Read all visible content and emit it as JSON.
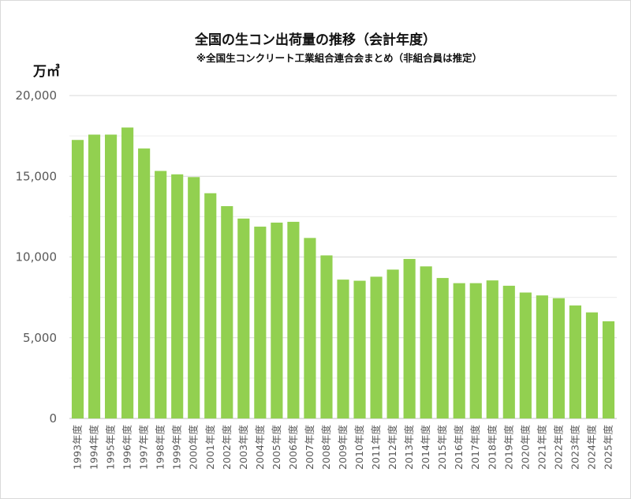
{
  "chart_data": {
    "type": "bar",
    "title": "全国の生コン出荷量の推移（会計年度）",
    "subtitle": "※全国生コンクリート工業組合連合会まとめ（非組合員は推定）",
    "ylabel": "万㎥",
    "xlabel": "",
    "ylim": [
      0,
      20000
    ],
    "yticks": [
      0,
      5000,
      10000,
      15000,
      20000
    ],
    "ytick_labels": [
      "0",
      "5,000",
      "10,000",
      "15,000",
      "20,000"
    ],
    "grid": true,
    "bar_color": "#92d050",
    "categories": [
      "1993年度",
      "1994年度",
      "1995年度",
      "1996年度",
      "1997年度",
      "1998年度",
      "1999年度",
      "2000年度",
      "2001年度",
      "2002年度",
      "2003年度",
      "2004年度",
      "2005年度",
      "2006年度",
      "2007年度",
      "2008年度",
      "2009年度",
      "2010年度",
      "2011年度",
      "2012年度",
      "2013年度",
      "2014年度",
      "2015年度",
      "2016年度",
      "2017年度",
      "2018年度",
      "2019年度",
      "2020年度",
      "2021年度",
      "2022年度",
      "2023年度",
      "2024年度",
      "2025年度"
    ],
    "values": [
      17250,
      17580,
      17580,
      18020,
      16720,
      15330,
      15120,
      14950,
      13950,
      13150,
      12380,
      11880,
      12130,
      12180,
      11180,
      10100,
      8600,
      8530,
      8780,
      9220,
      9880,
      9420,
      8700,
      8380,
      8380,
      8550,
      8220,
      7800,
      7620,
      7450,
      7000,
      6570,
      6020
    ]
  }
}
